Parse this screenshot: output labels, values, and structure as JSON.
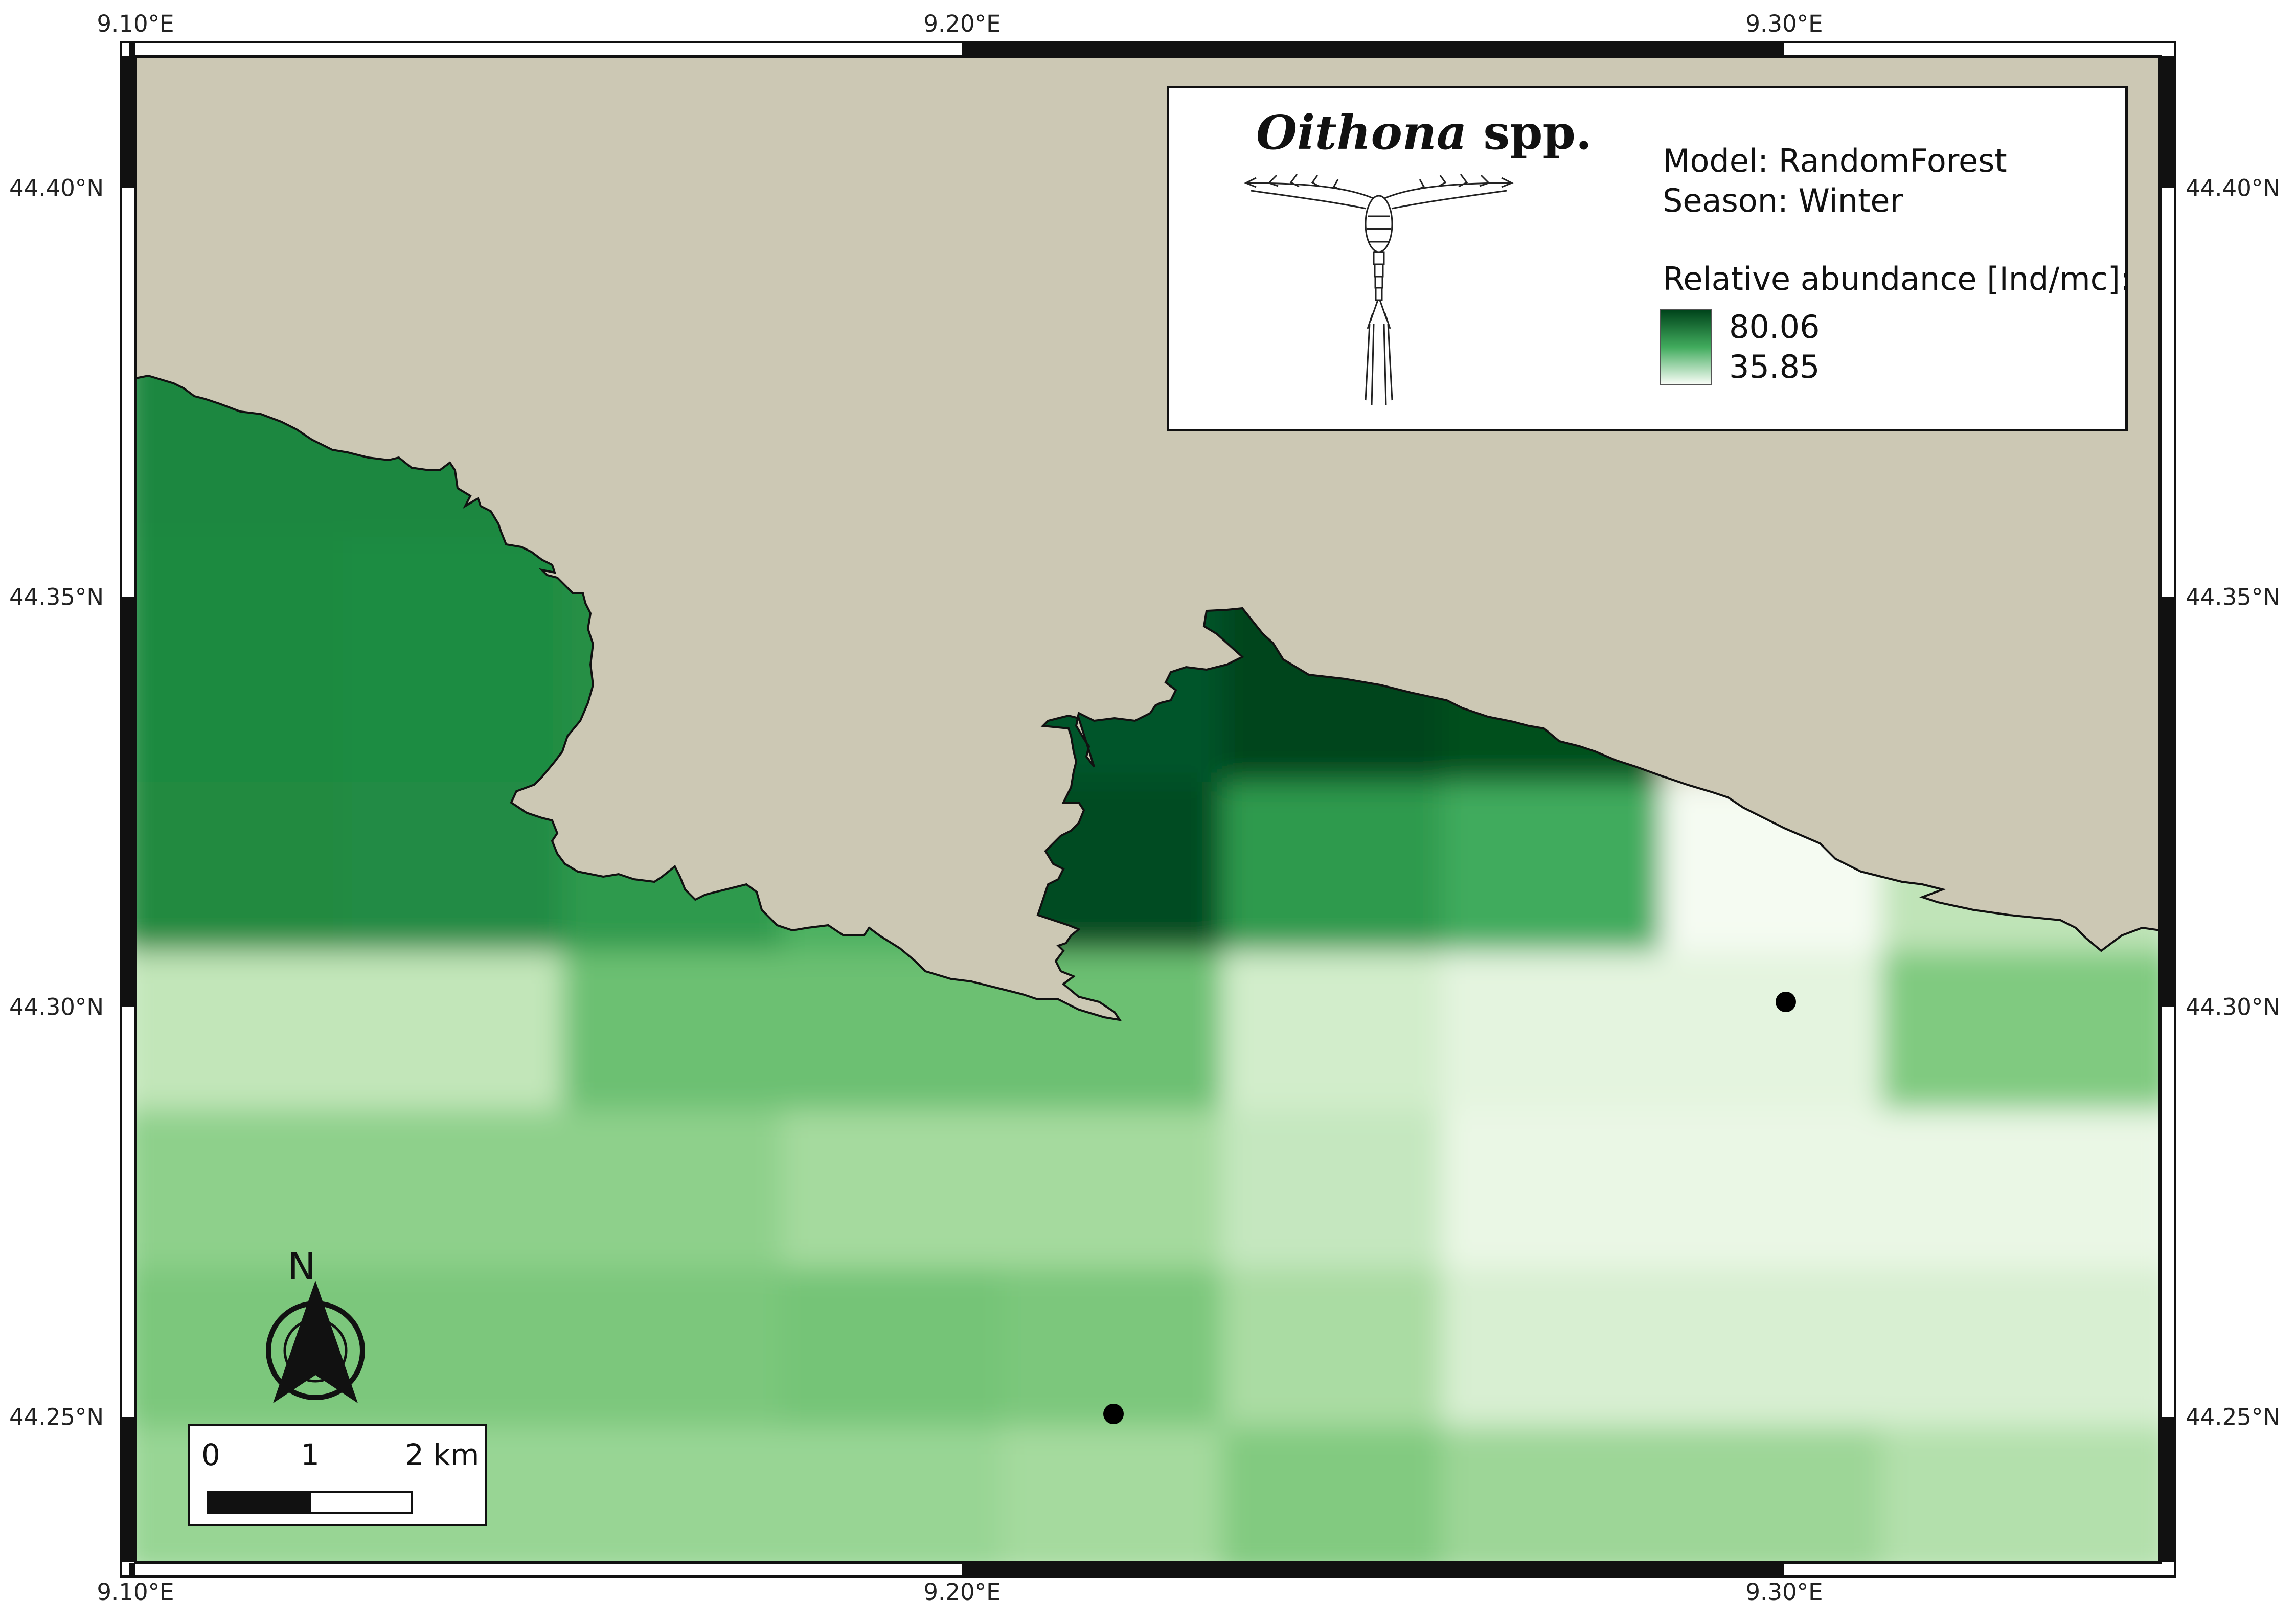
{
  "map": {
    "longitude_ticks": [
      "9.10°E",
      "9.20°E",
      "9.30°E"
    ],
    "latitude_ticks": [
      "44.40°N",
      "44.35°N",
      "44.30°N",
      "44.25°N"
    ],
    "colors": {
      "land": "#ccc8b4",
      "abundance_high": "#00441b",
      "abundance_mid": "#41ab5d",
      "abundance_low": "#f7fcf5",
      "frame": "#111111"
    },
    "sampling_stations_count": 2
  },
  "legend": {
    "genus": "Oithona",
    "suffix": "spp.",
    "model_line": "Model: RandomForest",
    "season_line": "Season: Winter",
    "abundance_title": "Relative abundance [Ind/mc]:",
    "ramp_max": "80.06",
    "ramp_min": "35.85",
    "illustration": "oithona-copepod-drawing"
  },
  "north_arrow": {
    "label": "N"
  },
  "scale_bar": {
    "labels": [
      "0",
      "1",
      "2 km"
    ]
  }
}
